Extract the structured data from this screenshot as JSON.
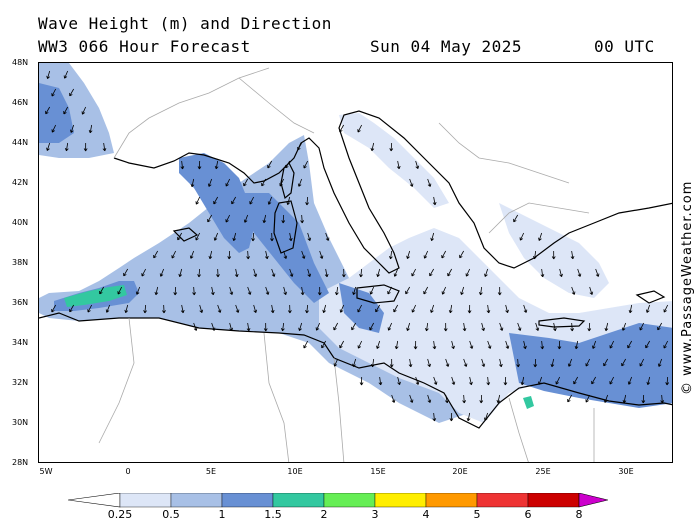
{
  "header": {
    "title_line1": "Wave Height (m) and Direction",
    "title_line2": "WW3 066 Hour Forecast",
    "date": "Sun 04 May 2025",
    "time": "00 UTC"
  },
  "credit": "© www.PassageWeather.com",
  "map": {
    "region": "Mediterranean Sea",
    "lon_range": [
      -5.5,
      33
    ],
    "lat_range": [
      28,
      48
    ],
    "lat_labels": [
      "48N",
      "46N",
      "44N",
      "42N",
      "40N",
      "38N",
      "36N",
      "34N",
      "32N",
      "30N",
      "28N"
    ],
    "lon_labels": [
      "5W",
      "0",
      "5E",
      "10E",
      "15E",
      "20E",
      "25E",
      "30E"
    ],
    "wave_direction_general": "south-southwest",
    "colors": {
      "land": "#ffffff",
      "coast": "#000000",
      "borders": "#aaaaaa"
    }
  },
  "legend": {
    "units": "m",
    "labels": [
      "0.25",
      "0.5",
      "1",
      "1.5",
      "2",
      "3",
      "4",
      "5",
      "6",
      "8"
    ],
    "colors": [
      "#ffffff",
      "#dde6f7",
      "#a8c0e6",
      "#6890d4",
      "#33c8a0",
      "#66ee55",
      "#ffee00",
      "#ff9900",
      "#ee3333",
      "#cc0000",
      "#cc00cc"
    ]
  }
}
